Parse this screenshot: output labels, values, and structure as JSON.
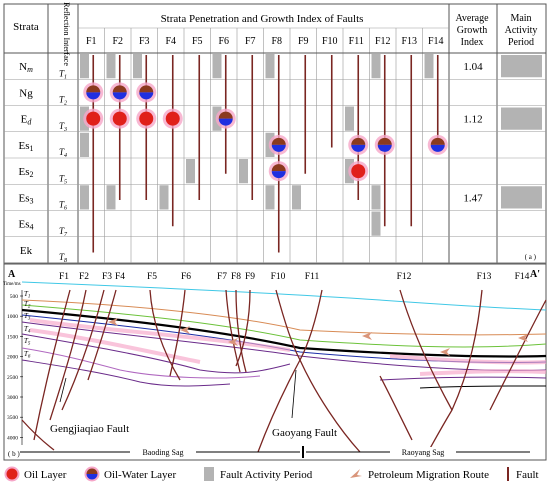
{
  "table": {
    "header_strata": "Strata",
    "header_interface": "Reflection Interface",
    "header_title": "Strata Penetration and Growth Index of Faults",
    "header_avg": [
      "Average",
      "Growth",
      "Index"
    ],
    "header_main": [
      "Main",
      "Activity",
      "Period"
    ],
    "faults": [
      "F1",
      "F2",
      "F3",
      "F4",
      "F5",
      "F6",
      "F7",
      "F8",
      "F9",
      "F10",
      "F11",
      "F12",
      "F13",
      "F14"
    ],
    "strata": [
      {
        "base": "N",
        "sub": "m",
        "italic": true
      },
      {
        "base": "Ng",
        "sub": ""
      },
      {
        "base": "E",
        "sub": "d",
        "italic": true
      },
      {
        "base": "Es",
        "sub": "1"
      },
      {
        "base": "Es",
        "sub": "2"
      },
      {
        "base": "Es",
        "sub": "3"
      },
      {
        "base": "Es",
        "sub": "4"
      },
      {
        "base": "Ek",
        "sub": ""
      }
    ],
    "interfaces": [
      {
        "t": "T",
        "s": "1"
      },
      {
        "t": "T",
        "s": "2"
      },
      {
        "t": "T",
        "s": "3"
      },
      {
        "t": "T",
        "s": "4"
      },
      {
        "t": "T",
        "s": "5"
      },
      {
        "t": "T",
        "s": "6"
      },
      {
        "t": "T",
        "s": "7"
      },
      {
        "t": "T",
        "s": "8"
      }
    ],
    "growth_index": [
      "1.04",
      "",
      "1.12",
      "",
      "",
      "1.47",
      "",
      ""
    ],
    "main_period_rows": [
      0,
      2,
      5
    ],
    "panel_label": "( a )",
    "activity_marks": [
      [
        0,
        0
      ],
      [
        1,
        0
      ],
      [
        2,
        0
      ],
      [
        5,
        0
      ],
      [
        7,
        0
      ],
      [
        11,
        0
      ],
      [
        13,
        0
      ],
      [
        0,
        2
      ],
      [
        5,
        2
      ],
      [
        10,
        2
      ],
      [
        0,
        3
      ],
      [
        7,
        3
      ],
      [
        4,
        4
      ],
      [
        6,
        4
      ],
      [
        10,
        4
      ],
      [
        0,
        5
      ],
      [
        1,
        5
      ],
      [
        3,
        5
      ],
      [
        7,
        5
      ],
      [
        8,
        5
      ],
      [
        11,
        5
      ],
      [
        11,
        6
      ]
    ],
    "fault_spans": [
      [
        0,
        7
      ],
      [
        1,
        5
      ],
      [
        2,
        5
      ],
      [
        3,
        6
      ],
      [
        4,
        5
      ],
      [
        5,
        4
      ],
      [
        6,
        5
      ],
      [
        7,
        7
      ],
      [
        8,
        4
      ],
      [
        9,
        3
      ],
      [
        10,
        5
      ],
      [
        11,
        6
      ],
      [
        12,
        6
      ],
      [
        13,
        3
      ]
    ],
    "oil_water_markers": [
      [
        0,
        1
      ],
      [
        1,
        1
      ],
      [
        2,
        1
      ],
      [
        5,
        2
      ],
      [
        7,
        3
      ],
      [
        7,
        4
      ],
      [
        10,
        3
      ],
      [
        11,
        3
      ],
      [
        13,
        3
      ]
    ],
    "oil_markers": [
      [
        0,
        2
      ],
      [
        1,
        2
      ],
      [
        2,
        2
      ],
      [
        3,
        2
      ],
      [
        10,
        4
      ]
    ]
  },
  "section": {
    "endpoint_left": "A",
    "endpoint_right": "A'",
    "time_unit": "Time/ms",
    "time_ticks": [
      "500",
      "1000",
      "1500",
      "2000",
      "2500",
      "3000",
      "3500",
      "4000"
    ],
    "fault_labels": [
      "F1",
      "F2",
      "F3",
      "F4",
      "F5",
      "F6",
      "F7",
      "F8",
      "F9",
      "F10",
      "F11",
      "F12",
      "F13",
      "F14"
    ],
    "horizon_labels": [
      "T1",
      "T2",
      "T3",
      "T4",
      "T5",
      "T6"
    ],
    "callout_left": "Gengjiaqiao Fault",
    "callout_mid": "Gaoyang Fault",
    "sag_left": "Baoding Sag",
    "sag_right": "Raoyang Sag",
    "panel_label": "( b )"
  },
  "legend": {
    "oil": "Oil Layer",
    "oil_water": "Oil-Water Layer",
    "activity": "Fault Activity Period",
    "migration": "Petroleum Migration Route",
    "fault": "Fault"
  },
  "colors": {
    "fault": "#7a2622",
    "activity": "#b3b3b3",
    "oil_red": "#e0201a",
    "oil_blue": "#1f2fe0",
    "oil_brown": "#8b3a1e",
    "glow": "#f6a6c8",
    "migration": "#d9957a"
  }
}
